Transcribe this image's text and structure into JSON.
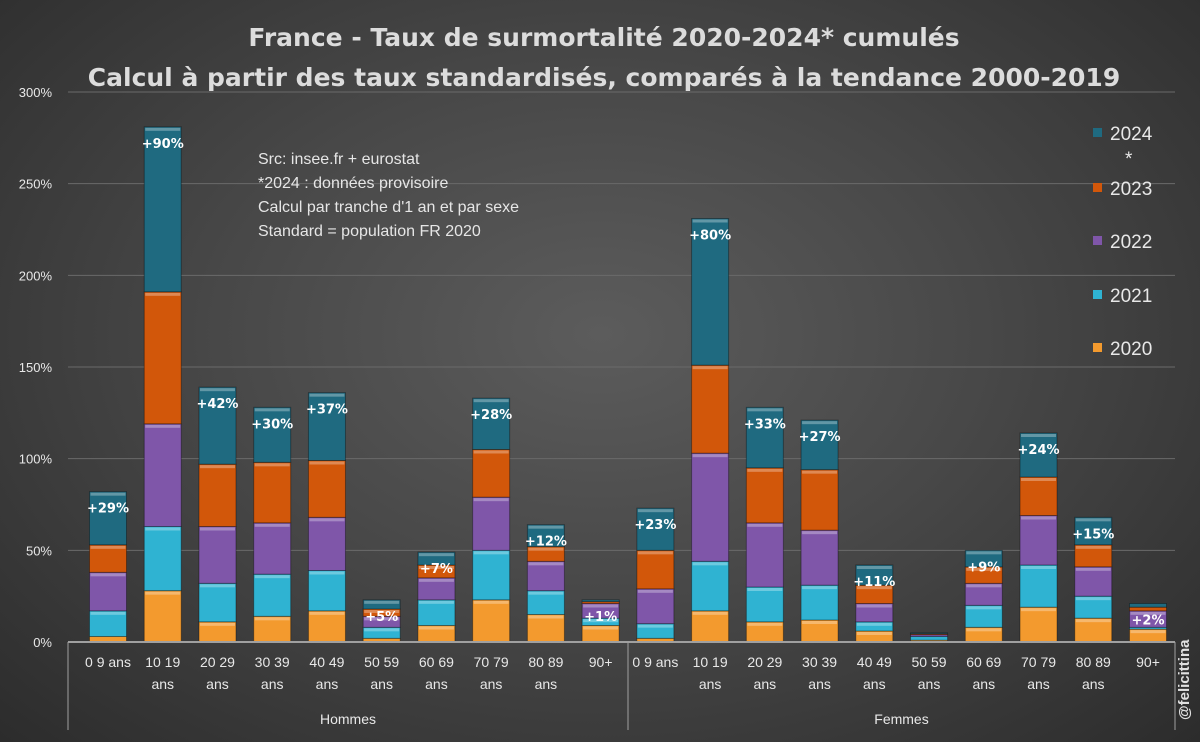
{
  "chart_data": {
    "type": "bar",
    "stacked": true,
    "title": "France - Taux de surmortalité 2020-2024* cumulés",
    "subtitle": "Calcul à partir des taux standardisés, comparés à la tendance 2000-2019",
    "xlabel": "",
    "ylabel": "",
    "ylim": [
      0,
      300
    ],
    "yticks": [
      "0%",
      "50%",
      "100%",
      "150%",
      "200%",
      "250%",
      "300%"
    ],
    "grid": true,
    "legend_position": "right",
    "groups": [
      {
        "name": "Hommes",
        "categories": [
          "0 9 ans",
          "10 19 ans",
          "20 29 ans",
          "30 39 ans",
          "40 49 ans",
          "50 59 ans",
          "60 69 ans",
          "70 79 ans",
          "80 89 ans",
          "90+"
        ]
      },
      {
        "name": "Femmes",
        "categories": [
          "0 9 ans",
          "10 19 ans",
          "20 29 ans",
          "30 39 ans",
          "40 49 ans",
          "50 59 ans",
          "60 69 ans",
          "70 79 ans",
          "80 89 ans",
          "90+"
        ]
      }
    ],
    "series": [
      {
        "name": "2020",
        "color": "#f39a2e",
        "values": [
          3,
          28,
          11,
          14,
          17,
          2,
          9,
          23,
          15,
          9,
          2,
          17,
          11,
          12,
          6,
          1,
          8,
          19,
          13,
          7
        ]
      },
      {
        "name": "2021",
        "color": "#2fb3d2",
        "values": [
          14,
          35,
          21,
          23,
          22,
          6,
          14,
          27,
          13,
          4,
          8,
          27,
          19,
          19,
          5,
          2,
          12,
          23,
          12,
          1
        ]
      },
      {
        "name": "2022",
        "color": "#7f56a9",
        "values": [
          21,
          56,
          31,
          28,
          29,
          6,
          12,
          29,
          16,
          8,
          19,
          59,
          35,
          30,
          10,
          1,
          12,
          27,
          16,
          9
        ]
      },
      {
        "name": "2023",
        "color": "#d2570a",
        "values": [
          15,
          72,
          34,
          33,
          31,
          4,
          7,
          26,
          8,
          1,
          21,
          48,
          30,
          33,
          10,
          0.5,
          9,
          21,
          12,
          2
        ]
      },
      {
        "name": "2024*",
        "color": "#1f6a80",
        "values": [
          29,
          90,
          42,
          30,
          37,
          5,
          7,
          28,
          12,
          1,
          23,
          80,
          33,
          27,
          11,
          0.5,
          9,
          24,
          15,
          2
        ]
      }
    ],
    "data_labels": [
      "+29%",
      "+90%",
      "+42%",
      "+30%",
      "+37%",
      "+5%",
      "+7%",
      "+28%",
      "+12%",
      "+1%",
      "+23%",
      "+80%",
      "+33%",
      "+27%",
      "+11%",
      "",
      "+9%",
      "+24%",
      "+15%",
      "+2%"
    ],
    "legend": [
      {
        "label": "2024",
        "suffix": "*",
        "color": "#1f6a80"
      },
      {
        "label": "2023",
        "color": "#d2570a"
      },
      {
        "label": "2022",
        "color": "#7f56a9"
      },
      {
        "label": "2021",
        "color": "#2fb3d2"
      },
      {
        "label": "2020",
        "color": "#f39a2e"
      }
    ],
    "annotations": [
      "Src: insee.fr + eurostat",
      "*2024 : données provisoire",
      "Calcul par tranche d'1 an et par sexe",
      "Standard = population FR 2020"
    ],
    "watermark": "@felicittina"
  }
}
